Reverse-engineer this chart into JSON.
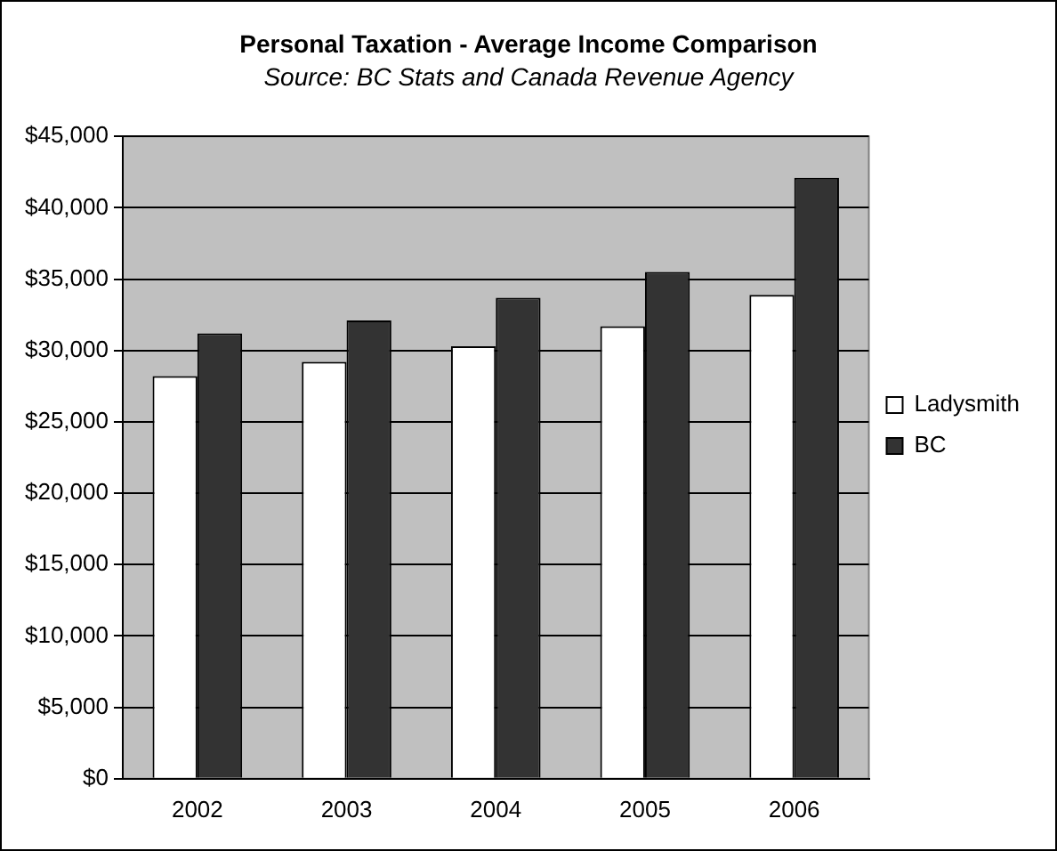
{
  "chart_data": {
    "type": "bar",
    "title": "Personal Taxation - Average Income Comparison",
    "subtitle": "Source: BC Stats and Canada Revenue Agency",
    "categories": [
      "2002",
      "2003",
      "2004",
      "2005",
      "2006"
    ],
    "series": [
      {
        "name": "Ladysmith",
        "color": "#ffffff",
        "values": [
          28200,
          29200,
          30300,
          31700,
          33900
        ]
      },
      {
        "name": "BC",
        "color": "#333333",
        "values": [
          31200,
          32100,
          33700,
          35500,
          42100
        ]
      }
    ],
    "ylim": [
      0,
      45000
    ],
    "yticks": [
      {
        "value": 0,
        "label": "$0"
      },
      {
        "value": 5000,
        "label": "$5,000"
      },
      {
        "value": 10000,
        "label": "$10,000"
      },
      {
        "value": 15000,
        "label": "$15,000"
      },
      {
        "value": 20000,
        "label": "$20,000"
      },
      {
        "value": 25000,
        "label": "$25,000"
      },
      {
        "value": 30000,
        "label": "$30,000"
      },
      {
        "value": 35000,
        "label": "$35,000"
      },
      {
        "value": 40000,
        "label": "$40,000"
      },
      {
        "value": 45000,
        "label": "$45,000"
      }
    ],
    "grid": "y",
    "legend": "right"
  }
}
